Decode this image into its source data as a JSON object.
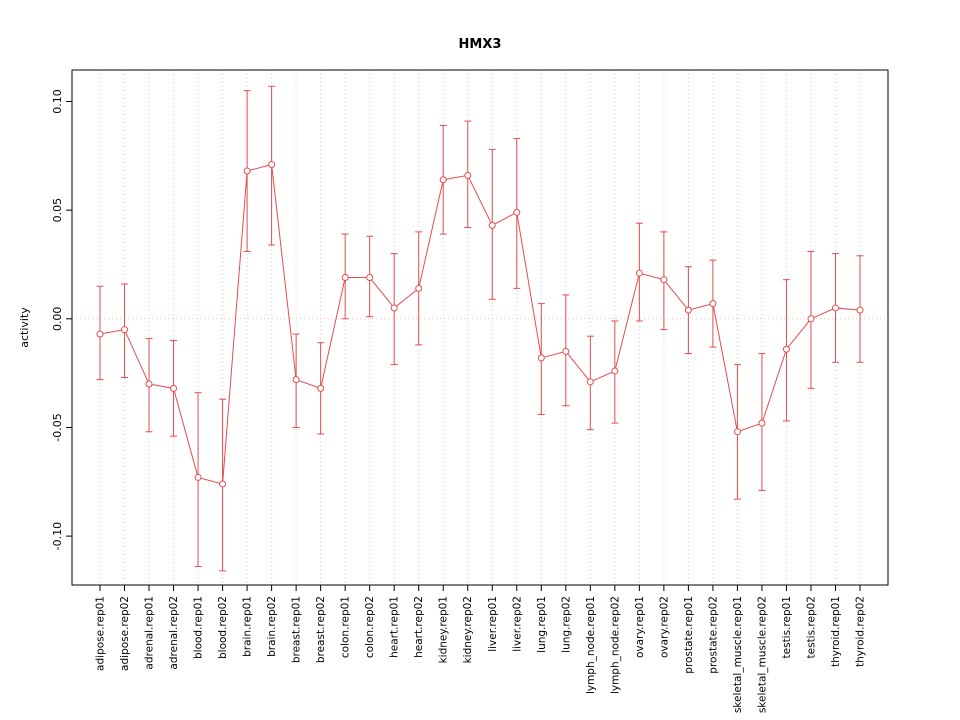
{
  "chart_data": {
    "type": "line",
    "title": "HMX3",
    "xlabel": "",
    "ylabel": "activity",
    "ylim": [
      -0.1225,
      0.1145
    ],
    "yticks": [
      -0.1,
      -0.05,
      0.0,
      0.05,
      0.1
    ],
    "grid": "vertical-dotted",
    "zero_line": true,
    "legend": "none",
    "marker": "open-circle",
    "error_bars": true,
    "colors": {
      "series": "#e74c4c",
      "grid": "#cccccc",
      "zero_line": "#f4bcbc",
      "axis": "#000000",
      "background": "#ffffff"
    },
    "categories": [
      "adipose.rep01",
      "adipose.rep02",
      "adrenal.rep01",
      "adrenal.rep02",
      "blood.rep01",
      "blood.rep02",
      "brain.rep01",
      "brain.rep02",
      "breast.rep01",
      "breast.rep02",
      "colon.rep01",
      "colon.rep02",
      "heart.rep01",
      "heart.rep02",
      "kidney.rep01",
      "kidney.rep02",
      "liver.rep01",
      "liver.rep02",
      "lung.rep01",
      "lung.rep02",
      "lymph_node.rep01",
      "lymph_node.rep02",
      "ovary.rep01",
      "ovary.rep02",
      "prostate.rep01",
      "prostate.rep02",
      "skeletal_muscle.rep01",
      "skeletal_muscle.rep02",
      "testis.rep01",
      "testis.rep02",
      "thyroid.rep01",
      "thyroid.rep02"
    ],
    "values": [
      -0.007,
      -0.005,
      -0.03,
      -0.032,
      -0.073,
      -0.076,
      0.068,
      0.071,
      -0.028,
      -0.032,
      0.019,
      0.019,
      0.005,
      0.014,
      0.064,
      0.066,
      0.043,
      0.049,
      -0.018,
      -0.015,
      -0.029,
      -0.024,
      0.021,
      0.018,
      0.004,
      0.007,
      -0.052,
      -0.048,
      -0.014,
      0.0,
      0.005,
      0.004
    ],
    "error_low": [
      -0.028,
      -0.027,
      -0.052,
      -0.054,
      -0.114,
      -0.116,
      0.031,
      0.034,
      -0.05,
      -0.053,
      0.0,
      0.001,
      -0.021,
      -0.012,
      0.039,
      0.042,
      0.009,
      0.014,
      -0.044,
      -0.04,
      -0.051,
      -0.048,
      -0.001,
      -0.005,
      -0.016,
      -0.013,
      -0.083,
      -0.079,
      -0.047,
      -0.032,
      -0.02,
      -0.02
    ],
    "error_high": [
      0.015,
      0.016,
      -0.009,
      -0.01,
      -0.034,
      -0.037,
      0.105,
      0.107,
      -0.007,
      -0.011,
      0.039,
      0.038,
      0.03,
      0.04,
      0.089,
      0.091,
      0.078,
      0.083,
      0.007,
      0.011,
      -0.008,
      -0.001,
      0.044,
      0.04,
      0.024,
      0.027,
      -0.021,
      -0.016,
      0.018,
      0.031,
      0.03,
      0.029
    ]
  }
}
